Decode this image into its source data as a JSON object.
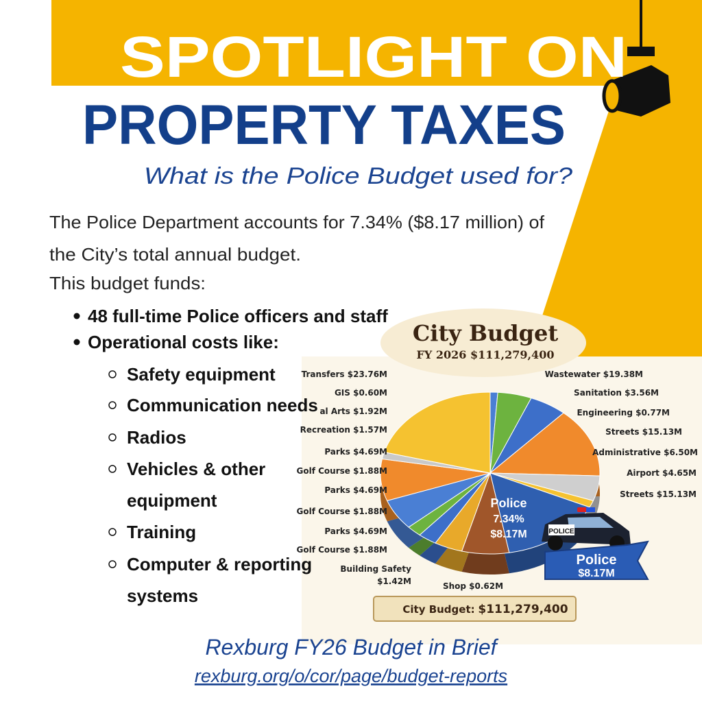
{
  "header": {
    "kicker": "SPOTLIGHT ON",
    "title": "PROPERTY TAXES",
    "question": "What is the Police Budget used for?"
  },
  "body": {
    "paragraph_lines": [
      "The Police Department accounts for 7.34% ($8.17 million) of",
      "the City’s total annual budget."
    ],
    "intro": "This budget funds:",
    "bullets": [
      "48 full-time Police officers and staff",
      "Operational costs like:"
    ],
    "sub_bullets": [
      [
        "Safety equipment"
      ],
      [
        "Communication needs"
      ],
      [
        "Radios"
      ],
      [
        "Vehicles & other",
        "equipment"
      ],
      [
        "Training"
      ],
      [
        "Computer & reporting",
        "systems"
      ]
    ]
  },
  "infographic": {
    "title": "City Budget",
    "subtitle": "FY 2026 $111,279,400",
    "left_labels": [
      "Transfers $23.76M",
      "GIS $0.60M",
      "al Arts $1.92M",
      "Recreation $1.57M",
      "Parks $4.69M",
      "Golf Course $1.88M",
      "Parks $4.69M",
      "Golf Course $1.88M",
      "Parks $4.69M",
      "Golf Course $1.88M",
      "Building Safety",
      "$1.42M",
      "Shop $0.62M"
    ],
    "right_labels": [
      "Wastewater $19.38M",
      "Sanitation $3.56M",
      "Engineering $0.77M",
      "Streets $15.13M",
      "Administrative $6.50M",
      "Airport $4.65M",
      "Streets $15.13M"
    ],
    "police_slice": [
      "Police",
      "7.34%",
      "$8.17M"
    ],
    "car_label": "POLICE",
    "badge": [
      "Police",
      "$8.17M"
    ],
    "total_label": "City Budget:",
    "total_value": "$111,279,400"
  },
  "footer": {
    "title": "Rexburg FY26 Budget in Brief",
    "link": "rexburg.org/o/cor/page/budget-reports"
  }
}
